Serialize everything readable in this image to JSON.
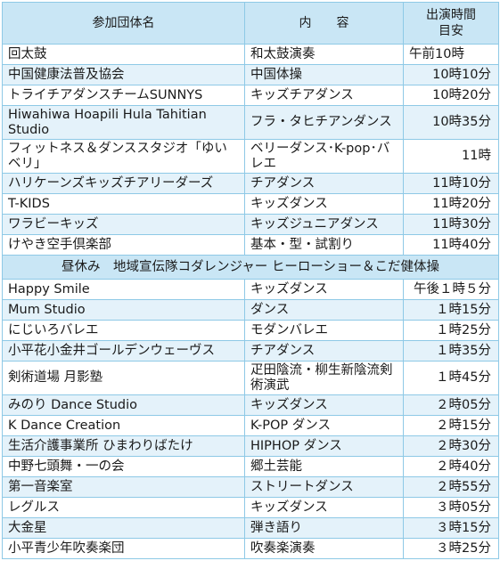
{
  "header": {
    "group": "参加団体名",
    "content": "内　　容",
    "time_line1": "出演時間",
    "time_line2": "目安"
  },
  "morning": [
    {
      "name": "回太鼓",
      "content": "和太鼓演奏",
      "time": "午前10時"
    },
    {
      "name": "中国健康法普及協会",
      "content": "中国体操",
      "time": "10時10分"
    },
    {
      "name": "トライチアダンスチームSUNNYS",
      "content": "キッズチアダンス",
      "time": "10時20分"
    },
    {
      "name": "Hiwahiwa Hoapili Hula Tahitian Studio",
      "content": "フラ・タヒチアンダンス",
      "time": "10時35分"
    },
    {
      "name": "フィットネス＆ダンススタジオ「ゆいベリ」",
      "content": "ベリーダンス･K-pop･バレエ",
      "time": "11時"
    },
    {
      "name": "ハリケーンズキッズチアリーダーズ",
      "content": "チアダンス",
      "time": "11時10分"
    },
    {
      "name": "T-KIDS",
      "content": "キッズダンス",
      "time": "11時20分"
    },
    {
      "name": "ワラビーキッズ",
      "content": "キッズジュニアダンス",
      "time": "11時30分"
    },
    {
      "name": "けやき空手倶楽部",
      "content": "基本・型・試割り",
      "time": "11時40分"
    }
  ],
  "break_text": "昼休み　地域宣伝隊コダレンジャー ヒーローショー＆こだ健体操",
  "afternoon": [
    {
      "name": "Happy Smile",
      "content": "キッズダンス",
      "time": "午後１時５分"
    },
    {
      "name": "Mum Studio",
      "content": "ダンス",
      "time": "１時15分"
    },
    {
      "name": "にじいろバレエ",
      "content": "モダンバレエ",
      "time": "１時25分"
    },
    {
      "name": "小平花小金井ゴールデンウェーヴス",
      "content": "チアダンス",
      "time": "１時35分"
    },
    {
      "name": "剣術道場 月影塾",
      "content": "疋田陰流・柳生新陰流剣術演武",
      "time": "１時45分"
    },
    {
      "name": "みのり Dance Studio",
      "content": "キッズダンス",
      "time": "２時05分"
    },
    {
      "name": "K Dance Creation",
      "content": "K-POP ダンス",
      "time": "２時15分"
    },
    {
      "name": "生活介護事業所 ひまわりばたけ",
      "content": "HIPHOP ダンス",
      "time": "２時30分"
    },
    {
      "name": "中野七頭舞・一の会",
      "content": "郷土芸能",
      "time": "２時40分"
    },
    {
      "name": "第一音楽室",
      "content": "ストリートダンス",
      "time": "２時55分"
    },
    {
      "name": "レグルス",
      "content": "キッズダンス",
      "time": "３時05分"
    },
    {
      "name": "大金星",
      "content": "弾き語り",
      "time": "３時15分"
    },
    {
      "name": "小平青少年吹奏楽団",
      "content": "吹奏楽演奏",
      "time": "３時25分"
    }
  ]
}
